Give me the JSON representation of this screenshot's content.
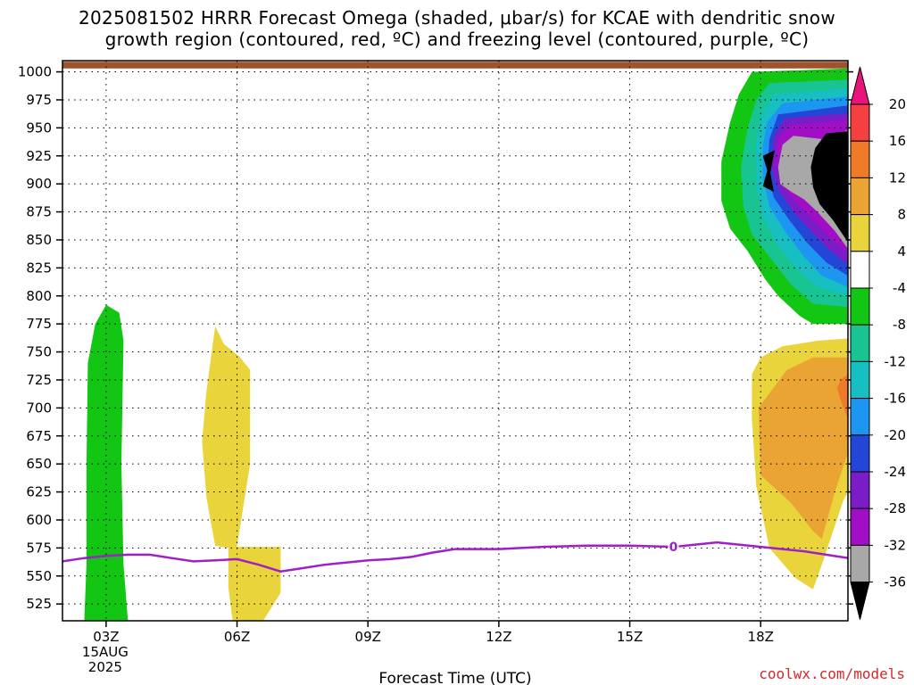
{
  "title": {
    "line1": "2025081502 HRRR Forecast Omega (shaded, μbar/s) for KCAE with dendritic snow",
    "line2": "growth region (contoured, red, ºC) and freezing level (contoured, purple, ºC)"
  },
  "credit": "coolwx.com/models",
  "chart_data": {
    "type": "heatmap",
    "title": "2025081502 HRRR Forecast Omega (shaded, μbar/s) for KCAE with dendritic snow growth region (contoured, red, ºC) and freezing level (contoured, purple, ºC)",
    "xlabel": "Forecast Time (UTC)",
    "ylabel": "",
    "x_axis": {
      "range_hours": [
        2,
        20
      ],
      "ticks": [
        {
          "hour": 3,
          "label": "03Z",
          "sub": [
            "15AUG",
            "2025"
          ]
        },
        {
          "hour": 6,
          "label": "06Z"
        },
        {
          "hour": 9,
          "label": "09Z"
        },
        {
          "hour": 12,
          "label": "12Z"
        },
        {
          "hour": 15,
          "label": "15Z"
        },
        {
          "hour": 18,
          "label": "18Z"
        }
      ]
    },
    "y_axis": {
      "unit": "hPa",
      "range": [
        1010,
        510
      ],
      "inverted": true,
      "ticks": [
        525,
        550,
        575,
        600,
        625,
        650,
        675,
        700,
        725,
        750,
        775,
        800,
        825,
        850,
        875,
        900,
        925,
        950,
        975,
        1000
      ],
      "grid": "dotted"
    },
    "colorbar": {
      "labels": [
        "20",
        "16",
        "12",
        "8",
        "4",
        "-4",
        "-8",
        "-12",
        "-16",
        "-20",
        "-24",
        "-28",
        "-32",
        "-36"
      ],
      "bins": [
        {
          "range": "> 20",
          "color": "#e8147c"
        },
        {
          "range": "16 to 20",
          "color": "#f44040"
        },
        {
          "range": "12 to 16",
          "color": "#ee7a2a"
        },
        {
          "range": "8 to 12",
          "color": "#e9a434"
        },
        {
          "range": "4 to 8",
          "color": "#e9d43b"
        },
        {
          "range": "-4 to 4",
          "color": "#ffffff"
        },
        {
          "range": "-8 to -4",
          "color": "#12c613"
        },
        {
          "range": "-12 to -8",
          "color": "#18c492"
        },
        {
          "range": "-16 to -12",
          "color": "#17bfc2"
        },
        {
          "range": "-20 to -16",
          "color": "#1c96f0"
        },
        {
          "range": "-24 to -20",
          "color": "#2446d6"
        },
        {
          "range": "-28 to -24",
          "color": "#7a1dc7"
        },
        {
          "range": "-32 to -28",
          "color": "#a10ec6"
        },
        {
          "range": "-36 to -32",
          "color": "#a8a8a8"
        },
        {
          "range": "< -36",
          "color": "#000000"
        }
      ]
    },
    "freezing_level": {
      "label": "0",
      "color": "#a020c8",
      "points": [
        [
          2.0,
          563
        ],
        [
          2.5,
          566
        ],
        [
          3.0,
          568
        ],
        [
          3.5,
          569
        ],
        [
          4.0,
          569
        ],
        [
          4.5,
          566
        ],
        [
          5.0,
          563
        ],
        [
          5.5,
          564
        ],
        [
          6.0,
          565
        ],
        [
          6.5,
          560
        ],
        [
          7.0,
          554
        ],
        [
          7.5,
          557
        ],
        [
          8.0,
          560
        ],
        [
          8.5,
          562
        ],
        [
          9.0,
          564
        ],
        [
          9.5,
          565
        ],
        [
          10.0,
          567
        ],
        [
          10.5,
          571
        ],
        [
          11.0,
          574
        ],
        [
          11.5,
          574
        ],
        [
          12.0,
          574
        ],
        [
          12.5,
          575
        ],
        [
          13.0,
          576
        ],
        [
          14.0,
          577
        ],
        [
          15.0,
          577
        ],
        [
          16.0,
          576
        ],
        [
          17.0,
          580
        ],
        [
          17.5,
          578
        ],
        [
          18.0,
          576
        ],
        [
          19.0,
          572
        ],
        [
          20.0,
          566
        ]
      ]
    },
    "omega_regions": [
      {
        "value_bin": "-8 to -4",
        "color": "#12c613",
        "points": [
          [
            2.5,
            510
          ],
          [
            3.5,
            510
          ],
          [
            3.4,
            560
          ],
          [
            3.35,
            650
          ],
          [
            3.4,
            760
          ],
          [
            3.3,
            785
          ],
          [
            3.0,
            792
          ],
          [
            2.75,
            775
          ],
          [
            2.58,
            740
          ],
          [
            2.55,
            650
          ],
          [
            2.55,
            560
          ]
        ]
      },
      {
        "value_bin": "4 to 8",
        "color": "#e9d43b",
        "points": [
          [
            5.9,
            510
          ],
          [
            6.6,
            510
          ],
          [
            7.0,
            535
          ],
          [
            7.0,
            576
          ],
          [
            6.0,
            576
          ],
          [
            6.0,
            577
          ],
          [
            6.3,
            650
          ],
          [
            6.3,
            734
          ],
          [
            6.05,
            746
          ],
          [
            5.7,
            757
          ],
          [
            5.5,
            773
          ],
          [
            5.3,
            715
          ],
          [
            5.2,
            670
          ],
          [
            5.3,
            620
          ],
          [
            5.4,
            598
          ],
          [
            5.5,
            577
          ],
          [
            5.8,
            575
          ],
          [
            5.8,
            540
          ]
        ]
      },
      {
        "value_bin": "4 to 8",
        "color": "#e9d43b",
        "points": [
          [
            20.0,
            625
          ],
          [
            19.9,
            618
          ],
          [
            19.4,
            560
          ],
          [
            19.2,
            538
          ],
          [
            18.8,
            548
          ],
          [
            18.2,
            575
          ],
          [
            17.9,
            630
          ],
          [
            17.8,
            690
          ],
          [
            17.8,
            730
          ],
          [
            18.0,
            745
          ],
          [
            18.5,
            755
          ],
          [
            19.3,
            760
          ],
          [
            20.0,
            762
          ]
        ]
      },
      {
        "value_bin": "8 to 12",
        "color": "#e9a434",
        "points": [
          [
            20.0,
            660
          ],
          [
            19.7,
            625
          ],
          [
            19.4,
            583
          ],
          [
            19.2,
            590
          ],
          [
            18.7,
            615
          ],
          [
            18.0,
            640
          ],
          [
            17.95,
            700
          ],
          [
            18.6,
            734
          ],
          [
            19.2,
            745
          ],
          [
            20.0,
            745
          ]
        ]
      },
      {
        "value_bin": "12 to 16",
        "color": "#ee7a2a",
        "points": [
          [
            20.0,
            690
          ],
          [
            19.85,
            705
          ],
          [
            19.75,
            718
          ],
          [
            19.85,
            726
          ],
          [
            20.0,
            730
          ]
        ]
      },
      {
        "value_bin": "-8 to -4",
        "color": "#12c613",
        "points": [
          [
            20.0,
            775
          ],
          [
            19.2,
            775
          ],
          [
            18.9,
            782
          ],
          [
            18.4,
            800
          ],
          [
            18.1,
            815
          ],
          [
            17.7,
            840
          ],
          [
            17.3,
            860
          ],
          [
            17.1,
            885
          ],
          [
            17.1,
            920
          ],
          [
            17.3,
            955
          ],
          [
            17.5,
            980
          ],
          [
            17.8,
            1000
          ],
          [
            20.0,
            1003
          ]
        ]
      },
      {
        "value_bin": "-12 to -8",
        "color": "#18c492",
        "points": [
          [
            20.0,
            790
          ],
          [
            19.2,
            793
          ],
          [
            18.7,
            810
          ],
          [
            18.3,
            830
          ],
          [
            17.8,
            855
          ],
          [
            17.6,
            880
          ],
          [
            17.55,
            915
          ],
          [
            17.7,
            950
          ],
          [
            17.9,
            975
          ],
          [
            18.2,
            990
          ],
          [
            20.0,
            993
          ]
        ]
      },
      {
        "value_bin": "-16 to -12",
        "color": "#17bfc2",
        "points": [
          [
            20.0,
            800
          ],
          [
            19.3,
            808
          ],
          [
            18.8,
            825
          ],
          [
            18.4,
            845
          ],
          [
            18.05,
            870
          ],
          [
            17.9,
            900
          ],
          [
            17.9,
            935
          ],
          [
            18.0,
            960
          ],
          [
            18.3,
            980
          ],
          [
            20.0,
            985
          ]
        ]
      },
      {
        "value_bin": "-20 to -16",
        "color": "#1c96f0",
        "points": [
          [
            20.0,
            808
          ],
          [
            19.4,
            818
          ],
          [
            18.95,
            837
          ],
          [
            18.55,
            858
          ],
          [
            18.2,
            880
          ],
          [
            18.05,
            905
          ],
          [
            18.05,
            935
          ],
          [
            18.15,
            955
          ],
          [
            18.5,
            972
          ],
          [
            20.0,
            978
          ]
        ]
      },
      {
        "value_bin": "-24 to -20",
        "color": "#2446d6",
        "points": [
          [
            20.0,
            818
          ],
          [
            19.5,
            830
          ],
          [
            19.05,
            848
          ],
          [
            18.65,
            868
          ],
          [
            18.3,
            888
          ],
          [
            18.15,
            910
          ],
          [
            18.2,
            940
          ],
          [
            18.4,
            962
          ],
          [
            20.0,
            970
          ]
        ]
      },
      {
        "value_bin": "-28 to -24",
        "color": "#7a1dc7",
        "points": [
          [
            20.0,
            828
          ],
          [
            19.55,
            842
          ],
          [
            19.15,
            858
          ],
          [
            18.75,
            875
          ],
          [
            18.4,
            895
          ],
          [
            18.25,
            915
          ],
          [
            18.3,
            942
          ],
          [
            18.55,
            958
          ],
          [
            20.0,
            963
          ]
        ]
      },
      {
        "value_bin": "-32 to -28",
        "color": "#a10ec6",
        "points": [
          [
            20.0,
            838
          ],
          [
            19.6,
            852
          ],
          [
            19.2,
            868
          ],
          [
            18.85,
            882
          ],
          [
            18.5,
            898
          ],
          [
            18.35,
            918
          ],
          [
            18.4,
            940
          ],
          [
            18.65,
            952
          ],
          [
            20.0,
            957
          ]
        ]
      },
      {
        "value_bin": "-36 to -32",
        "color": "#a8a8a8",
        "points": [
          [
            20.0,
            842
          ],
          [
            19.7,
            858
          ],
          [
            19.3,
            875
          ],
          [
            19.0,
            886
          ],
          [
            18.7,
            893
          ],
          [
            18.45,
            900
          ],
          [
            18.4,
            915
          ],
          [
            18.5,
            935
          ],
          [
            18.75,
            943
          ],
          [
            19.4,
            940
          ],
          [
            20.0,
            948
          ]
        ]
      },
      {
        "value_bin": "< -36",
        "color": "#000000",
        "points": [
          [
            20.0,
            848
          ],
          [
            19.65,
            868
          ],
          [
            19.35,
            882
          ],
          [
            19.2,
            897
          ],
          [
            19.15,
            915
          ],
          [
            19.25,
            932
          ],
          [
            19.5,
            945
          ],
          [
            20.0,
            947
          ]
        ]
      },
      {
        "value_bin": "< -36",
        "color": "#000000",
        "points": [
          [
            18.05,
            898
          ],
          [
            18.3,
            893
          ],
          [
            18.22,
            910
          ],
          [
            18.32,
            930
          ],
          [
            18.05,
            925
          ],
          [
            18.15,
            912
          ]
        ]
      },
      {
        "value_bin": "dendritic growth (contoured, red)",
        "color": "#a0522d",
        "points": [
          [
            2.0,
            1003
          ],
          [
            20.0,
            1003
          ],
          [
            20.0,
            1009
          ],
          [
            2.0,
            1009
          ]
        ]
      }
    ]
  }
}
